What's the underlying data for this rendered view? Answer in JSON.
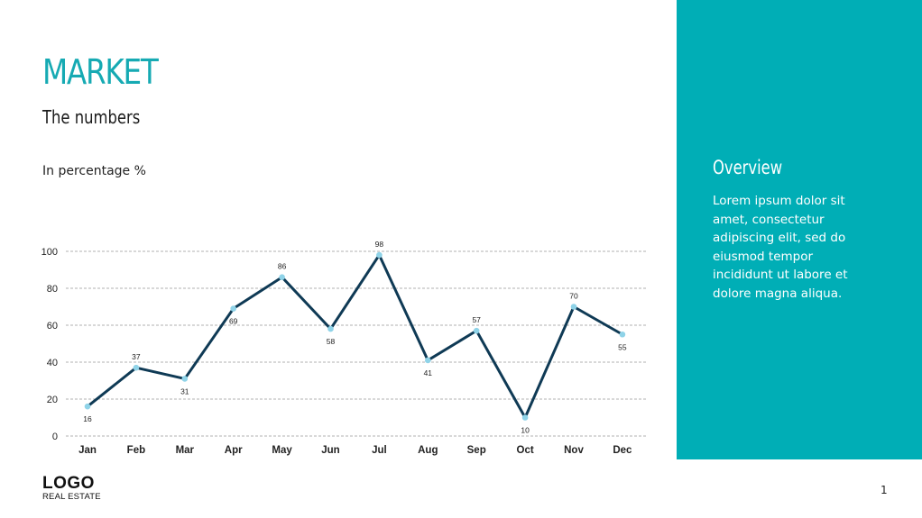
{
  "header": {
    "title": "MARKET",
    "subtitle": "The numbers",
    "unit_label": "In percentage %"
  },
  "overview": {
    "heading": "Overview",
    "body": "Lorem ipsum dolor sit amet, consectetur adipiscing elit, sed do eiusmod tempor incididunt ut labore et dolore magna aliqua."
  },
  "footer": {
    "logo_main": "LOGO",
    "logo_sub": "REAL ESTATE",
    "page_number": "1"
  },
  "colors": {
    "accent": "#00aeb6",
    "title": "#16aab3",
    "line": "#0f3a55",
    "marker": "#8fd3e8",
    "grid": "#999999"
  },
  "chart_data": {
    "type": "line",
    "categories": [
      "Jan",
      "Feb",
      "Mar",
      "Apr",
      "May",
      "Jun",
      "Jul",
      "Aug",
      "Sep",
      "Oct",
      "Nov",
      "Dec"
    ],
    "series": [
      {
        "values": [
          16,
          37,
          31,
          69,
          86,
          58,
          98,
          41,
          57,
          10,
          70,
          55
        ]
      }
    ],
    "ylim": [
      0,
      100
    ],
    "yticks": [
      0,
      20,
      40,
      60,
      80,
      100
    ],
    "grid": true,
    "legend": "none",
    "data_labels": true
  }
}
